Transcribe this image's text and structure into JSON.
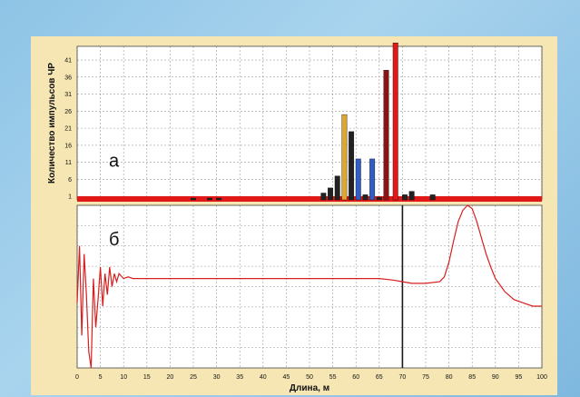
{
  "chart_data": [
    {
      "panel_label": "а",
      "type": "bar",
      "ylabel": "Количество импульсов ЧР",
      "yticks": [
        "1",
        "6",
        "11",
        "16",
        "21",
        "26",
        "31",
        "36",
        "41"
      ],
      "ylim": [
        0,
        45
      ],
      "xlim": [
        0,
        100
      ],
      "grid": true,
      "bars": [
        {
          "x": 25,
          "value": 0.5,
          "color": "#222222"
        },
        {
          "x": 28.5,
          "value": 0.5,
          "color": "#222222"
        },
        {
          "x": 30.5,
          "value": 0.5,
          "color": "#222222"
        },
        {
          "x": 53,
          "value": 2,
          "color": "#222222"
        },
        {
          "x": 54.5,
          "value": 3.5,
          "color": "#222222"
        },
        {
          "x": 56,
          "value": 7,
          "color": "#222222"
        },
        {
          "x": 57.5,
          "value": 25,
          "color": "#e0a72e"
        },
        {
          "x": 59,
          "value": 20,
          "color": "#222222"
        },
        {
          "x": 60.5,
          "value": 12,
          "color": "#2f5fc4"
        },
        {
          "x": 62,
          "value": 1.5,
          "color": "#222222"
        },
        {
          "x": 63.5,
          "value": 12,
          "color": "#2f5fc4"
        },
        {
          "x": 65,
          "value": 0.8,
          "color": "#222222"
        },
        {
          "x": 66.5,
          "value": 38,
          "color": "#8a1414"
        },
        {
          "x": 68.5,
          "value": 46,
          "color": "#e01818"
        },
        {
          "x": 70.5,
          "value": 1.5,
          "color": "#222222"
        },
        {
          "x": 72,
          "value": 2.5,
          "color": "#222222"
        },
        {
          "x": 76.5,
          "value": 1.5,
          "color": "#222222"
        }
      ],
      "baseline_color": "#e01818"
    },
    {
      "panel_label": "б",
      "type": "line",
      "xlabel": "Длина, м",
      "xticks": [
        "0",
        "5",
        "10",
        "15",
        "20",
        "25",
        "30",
        "35",
        "40",
        "45",
        "50",
        "55",
        "60",
        "65",
        "70",
        "75",
        "80",
        "85",
        "90",
        "95",
        "100"
      ],
      "xlim": [
        0,
        100
      ],
      "ylim": [
        0,
        100
      ],
      "grid": true,
      "marker_x": 70,
      "series": [
        {
          "color": "#d81e1e",
          "points": [
            [
              0,
              40
            ],
            [
              0.5,
              75
            ],
            [
              1,
              20
            ],
            [
              1.5,
              70
            ],
            [
              2,
              45
            ],
            [
              2.5,
              10
            ],
            [
              3,
              0
            ],
            [
              3.5,
              55
            ],
            [
              4,
              25
            ],
            [
              4.5,
              42
            ],
            [
              5,
              62
            ],
            [
              5.5,
              38
            ],
            [
              6,
              58
            ],
            [
              6.5,
              45
            ],
            [
              7,
              62
            ],
            [
              7.5,
              50
            ],
            [
              8,
              58
            ],
            [
              8.5,
              53
            ],
            [
              9,
              58
            ],
            [
              10,
              55
            ],
            [
              11,
              56
            ],
            [
              12,
              55
            ],
            [
              15,
              55
            ],
            [
              20,
              55
            ],
            [
              30,
              55
            ],
            [
              40,
              55
            ],
            [
              50,
              55
            ],
            [
              60,
              55
            ],
            [
              65,
              55
            ],
            [
              68,
              54
            ],
            [
              70,
              53
            ],
            [
              72,
              52
            ],
            [
              75,
              52
            ],
            [
              78,
              53
            ],
            [
              79,
              56
            ],
            [
              80,
              65
            ],
            [
              81,
              78
            ],
            [
              82,
              90
            ],
            [
              83,
              97
            ],
            [
              84,
              100
            ],
            [
              85,
              98
            ],
            [
              86,
              90
            ],
            [
              87,
              80
            ],
            [
              88,
              70
            ],
            [
              89,
              62
            ],
            [
              90,
              55
            ],
            [
              92,
              47
            ],
            [
              94,
              42
            ],
            [
              96,
              40
            ],
            [
              98,
              38
            ],
            [
              100,
              38
            ]
          ]
        }
      ]
    }
  ]
}
